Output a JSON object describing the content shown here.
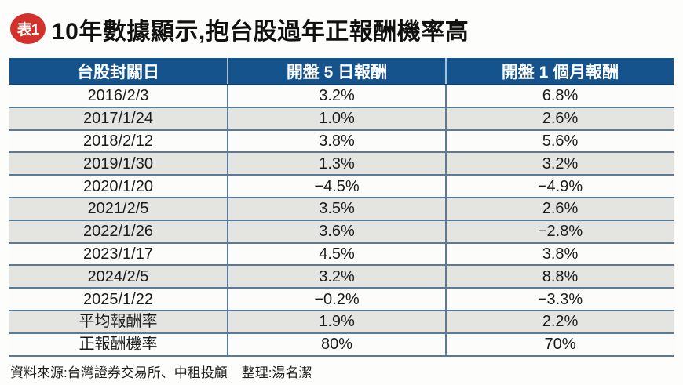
{
  "title": {
    "badge": "表1",
    "text": "10年數據顯示,抱台股過年正報酬機率高"
  },
  "colors": {
    "header_bg": "#15538c",
    "row_shade": "#e4e4e0",
    "line": "#5a7a9b",
    "badge_red": "#d2312c"
  },
  "chart_data": {
    "type": "table",
    "title": "10年數據顯示,抱台股過年正報酬機率高",
    "columns": [
      "台股封關日",
      "開盤 5 日報酬",
      "開盤 1 個月報酬"
    ],
    "rows": [
      {
        "date": "2016/2/3",
        "day5": "3.2%",
        "month1": "6.8%",
        "shade": false
      },
      {
        "date": "2017/1/24",
        "day5": "1.0%",
        "month1": "2.6%",
        "shade": true
      },
      {
        "date": "2018/2/12",
        "day5": "3.8%",
        "month1": "5.6%",
        "shade": false
      },
      {
        "date": "2019/1/30",
        "day5": "1.3%",
        "month1": "3.2%",
        "shade": true
      },
      {
        "date": "2020/1/20",
        "day5": "−4.5%",
        "month1": "−4.9%",
        "shade": false
      },
      {
        "date": "2021/2/5",
        "day5": "3.5%",
        "month1": "2.6%",
        "shade": true
      },
      {
        "date": "2022/1/26",
        "day5": "3.6%",
        "month1": "−2.8%",
        "shade": true
      },
      {
        "date": "2023/1/17",
        "day5": "4.5%",
        "month1": "3.8%",
        "shade": false
      },
      {
        "date": "2024/2/5",
        "day5": "3.2%",
        "month1": "8.8%",
        "shade": true
      },
      {
        "date": "2025/1/22",
        "day5": "−0.2%",
        "month1": "−3.3%",
        "shade": false
      },
      {
        "date": "平均報酬率",
        "day5": "1.9%",
        "month1": "2.2%",
        "shade": true
      },
      {
        "date": "正報酬機率",
        "day5": "80%",
        "month1": "70%",
        "shade": false
      }
    ],
    "series": [
      {
        "name": "開盤 5 日報酬 (%)",
        "values": [
          3.2,
          1.0,
          3.8,
          1.3,
          -4.5,
          3.5,
          3.6,
          4.5,
          3.2,
          -0.2
        ]
      },
      {
        "name": "開盤 1 個月報酬 (%)",
        "values": [
          6.8,
          2.6,
          5.6,
          3.2,
          -4.9,
          2.6,
          -2.8,
          3.8,
          8.8,
          -3.3
        ]
      }
    ],
    "categories": [
      "2016/2/3",
      "2017/1/24",
      "2018/2/12",
      "2019/1/30",
      "2020/1/20",
      "2021/2/5",
      "2022/1/26",
      "2023/1/17",
      "2024/2/5",
      "2025/1/22"
    ],
    "summary": {
      "average_return": {
        "label": "平均報酬率",
        "day5": "1.9%",
        "month1": "2.2%"
      },
      "positive_probability": {
        "label": "正報酬機率",
        "day5": "80%",
        "month1": "70%"
      }
    }
  },
  "footer": {
    "source": "資料來源:台灣證券交易所、中租投顧",
    "editor": "整理:湯名潔"
  }
}
